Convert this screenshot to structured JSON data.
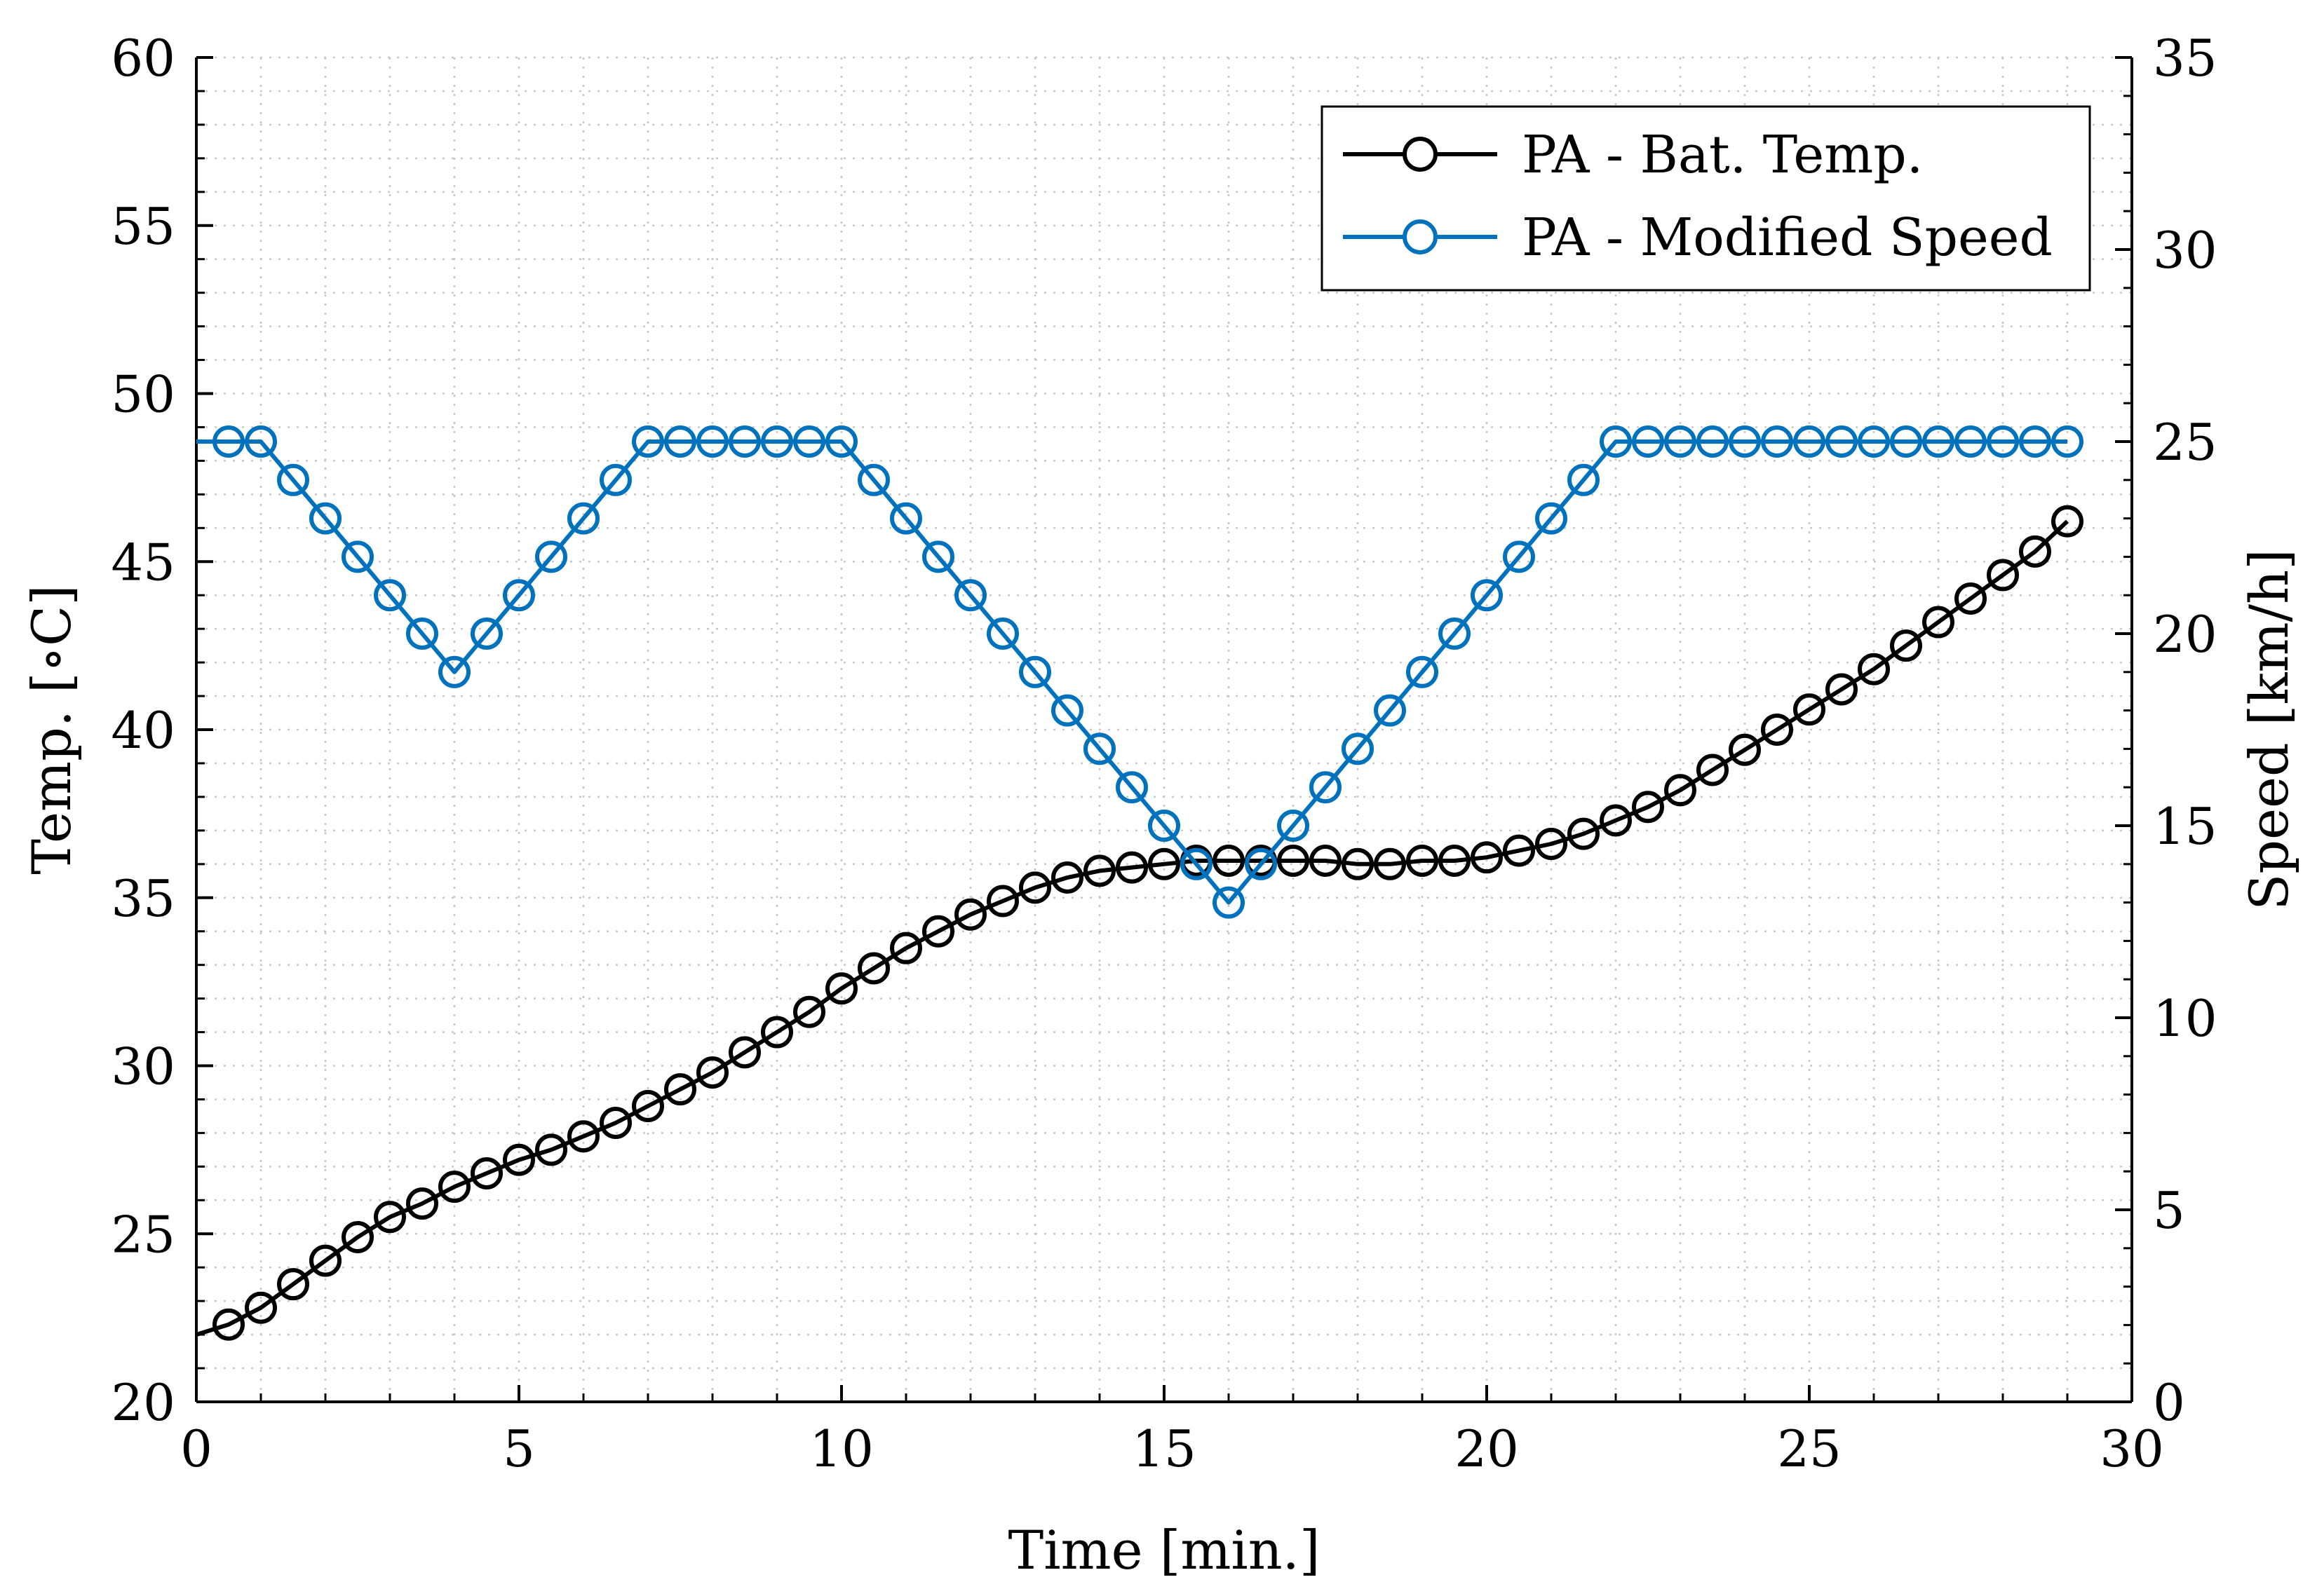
{
  "chart_data": {
    "type": "line",
    "title": "",
    "xlabel": "Time [min.]",
    "ylabel_left": "Temp. [∘C]",
    "ylabel_right": "Speed [km/h]",
    "xlim": [
      0,
      30
    ],
    "ylim_left": [
      20,
      60
    ],
    "ylim_right": [
      0,
      35
    ],
    "x_ticks": [
      0,
      5,
      10,
      15,
      20,
      25,
      30
    ],
    "y_left_ticks": [
      20,
      25,
      30,
      35,
      40,
      45,
      50,
      55,
      60
    ],
    "y_right_ticks": [
      0,
      5,
      10,
      15,
      20,
      25,
      30,
      35
    ],
    "grid": "minor dotted",
    "legend_position": "top-right",
    "colors": {
      "temp": "#000000",
      "speed": "#0072BD",
      "grid": "#c8c8c8"
    },
    "series": [
      {
        "name": "PA - Bat. Temp.",
        "axis": "left",
        "color": "#000000",
        "line_start": [
          0,
          22.0
        ],
        "x": [
          0.5,
          1,
          1.5,
          2,
          2.5,
          3,
          3.5,
          4,
          4.5,
          5,
          5.5,
          6,
          6.5,
          7,
          7.5,
          8,
          8.5,
          9,
          9.5,
          10,
          10.5,
          11,
          11.5,
          12,
          12.5,
          13,
          13.5,
          14,
          14.5,
          15,
          15.5,
          16,
          16.5,
          17,
          17.5,
          18,
          18.5,
          19,
          19.5,
          20,
          20.5,
          21,
          21.5,
          22,
          22.5,
          23,
          23.5,
          24,
          24.5,
          25,
          25.5,
          26,
          26.5,
          27,
          27.5,
          28,
          28.5,
          29
        ],
        "values": [
          22.3,
          22.8,
          23.5,
          24.2,
          24.9,
          25.5,
          25.9,
          26.4,
          26.8,
          27.2,
          27.5,
          27.9,
          28.3,
          28.8,
          29.3,
          29.8,
          30.4,
          31.0,
          31.6,
          32.3,
          32.9,
          33.5,
          34.0,
          34.5,
          34.9,
          35.3,
          35.6,
          35.8,
          35.9,
          36.0,
          36.1,
          36.1,
          36.1,
          36.1,
          36.1,
          36.0,
          36.0,
          36.1,
          36.1,
          36.2,
          36.4,
          36.6,
          36.9,
          37.3,
          37.7,
          38.2,
          38.8,
          39.4,
          40.0,
          40.6,
          41.2,
          41.8,
          42.5,
          43.2,
          43.9,
          44.6,
          45.3,
          46.2
        ]
      },
      {
        "name": "PA - Modified Speed",
        "axis": "right",
        "color": "#0072BD",
        "line_start": [
          0,
          25
        ],
        "x": [
          0.5,
          1,
          1.5,
          2,
          2.5,
          3,
          3.5,
          4,
          4.5,
          5,
          5.5,
          6,
          6.5,
          7,
          7.5,
          8,
          8.5,
          9,
          9.5,
          10,
          10.5,
          11,
          11.5,
          12,
          12.5,
          13,
          13.5,
          14,
          14.5,
          15,
          15.5,
          16,
          16.5,
          17,
          17.5,
          18,
          18.5,
          19,
          19.5,
          20,
          20.5,
          21,
          21.5,
          22,
          22.5,
          23,
          23.5,
          24,
          24.5,
          25,
          25.5,
          26,
          26.5,
          27,
          27.5,
          28,
          28.5,
          29
        ],
        "values": [
          25,
          25,
          24,
          23,
          22,
          21,
          20,
          19,
          20,
          21,
          22,
          23,
          24,
          25,
          25,
          25,
          25,
          25,
          25,
          25,
          24,
          23,
          22,
          21,
          20,
          19,
          18,
          17,
          16,
          15,
          14,
          13,
          14,
          15,
          16,
          17,
          18,
          19,
          20,
          21,
          22,
          23,
          24,
          25,
          25,
          25,
          25,
          25,
          25,
          25,
          25,
          25,
          25,
          25,
          25,
          25,
          25,
          25
        ]
      }
    ]
  }
}
